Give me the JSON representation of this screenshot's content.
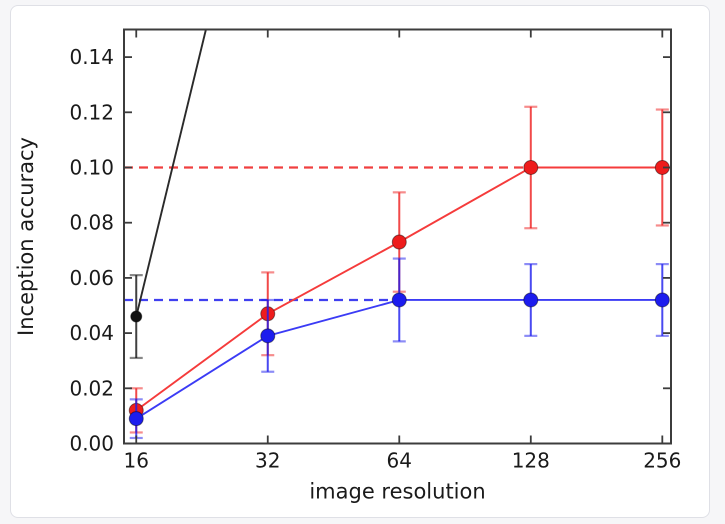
{
  "figure": {
    "page_background": "#f6f6f8",
    "panel_background": "#ffffff",
    "panel_border_color": "#dfe0e6",
    "spine_color": "#3c3c3c",
    "text_color": "#1a1a1a"
  },
  "chart_data": {
    "type": "line",
    "title": "",
    "xlabel": "image resolution",
    "ylabel": "Inception accuracy",
    "x_scale": "log2",
    "xlim": [
      15,
      268
    ],
    "ylim": [
      0,
      0.15
    ],
    "x_ticks": [
      16,
      32,
      64,
      128,
      256
    ],
    "x_tick_labels": [
      "16",
      "32",
      "64",
      "128",
      "256"
    ],
    "y_ticks": [
      0.0,
      0.02,
      0.04,
      0.06,
      0.08,
      0.1,
      0.12,
      0.14
    ],
    "y_tick_labels": [
      "0.00",
      "0.02",
      "0.04",
      "0.06",
      "0.08",
      "0.10",
      "0.12",
      "0.14"
    ],
    "grid": false,
    "legend": null,
    "series": [
      {
        "name": "red-series",
        "color": "#ee1c1c",
        "line_color": "#f53b3b",
        "x": [
          16,
          32,
          64,
          128,
          256
        ],
        "y": [
          0.012,
          0.047,
          0.073,
          0.1,
          0.1
        ],
        "yerr": [
          0.008,
          0.015,
          0.018,
          0.022,
          0.021
        ],
        "marker": "circle",
        "marker_size": 7,
        "marker_indices": [
          0,
          1,
          2,
          3,
          4
        ]
      },
      {
        "name": "blue-series",
        "color": "#1c1cee",
        "line_color": "#3b3bf5",
        "x": [
          16,
          32,
          64,
          128,
          256
        ],
        "y": [
          0.009,
          0.039,
          0.052,
          0.052,
          0.052
        ],
        "yerr": [
          0.007,
          0.013,
          0.015,
          0.013,
          0.013
        ],
        "marker": "circle",
        "marker_size": 7,
        "marker_indices": [
          0,
          1,
          2,
          3,
          4
        ]
      },
      {
        "name": "black-series",
        "color": "#111111",
        "line_color": "#2a2a2a",
        "x": [
          16,
          23.1
        ],
        "y": [
          0.046,
          0.15
        ],
        "yerr": [
          0.015,
          null
        ],
        "marker": "circle",
        "marker_size": 5.5,
        "marker_indices": [
          0
        ]
      }
    ],
    "reference_lines": [
      {
        "name": "red-asymptote",
        "y": 0.1,
        "x_from": 15,
        "x_to": 128,
        "style": "dashed",
        "color": "#f04040"
      },
      {
        "name": "blue-asymptote",
        "y": 0.052,
        "x_from": 15,
        "x_to": 64,
        "style": "dashed",
        "color": "#4040f0"
      }
    ]
  }
}
